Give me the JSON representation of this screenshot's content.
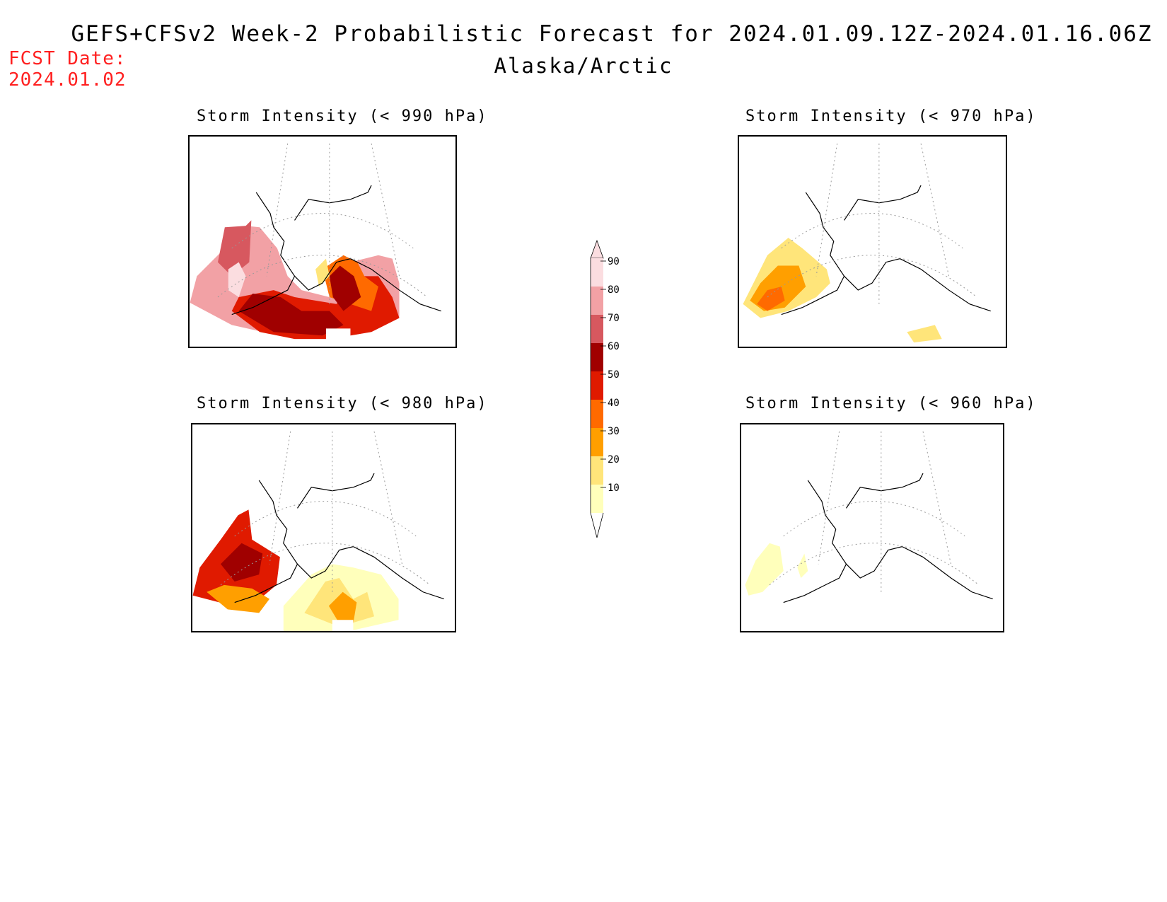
{
  "header": {
    "title": "GEFS+CFSv2 Week-2 Probabilistic Forecast for 2024.01.09.12Z-2024.01.16.06Z",
    "subtitle": "Alaska/Arctic",
    "fcst_label": "FCST Date:",
    "fcst_date": "2024.01.02"
  },
  "panels": [
    {
      "id": "p990",
      "title": "Storm Intensity (< 990 hPa)",
      "max_probability_band": "90"
    },
    {
      "id": "p970",
      "title": "Storm Intensity (< 970 hPa)",
      "max_probability_band": "40"
    },
    {
      "id": "p980",
      "title": "Storm Intensity (< 980 hPa)",
      "max_probability_band": "70"
    },
    {
      "id": "p960",
      "title": "Storm Intensity (< 960 hPa)",
      "max_probability_band": "20"
    }
  ],
  "colorbar": {
    "labels": [
      "90",
      "80",
      "70",
      "60",
      "50",
      "40",
      "30",
      "20",
      "10"
    ],
    "colors": [
      "#fbdde0",
      "#f2a1a5",
      "#d7585f",
      "#a00000",
      "#e01a00",
      "#ff6a00",
      "#ff9f00",
      "#ffe57a",
      "#ffffbb"
    ]
  }
}
